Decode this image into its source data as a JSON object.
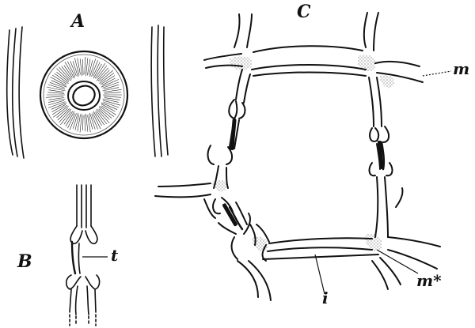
{
  "figure": {
    "panels": {
      "a": "A",
      "b": "B",
      "c": "C"
    },
    "labels": {
      "t": "t",
      "m": "m",
      "m_star": "m*",
      "i": "i"
    },
    "ink_color": "#111111",
    "background_color": "#ffffff"
  }
}
